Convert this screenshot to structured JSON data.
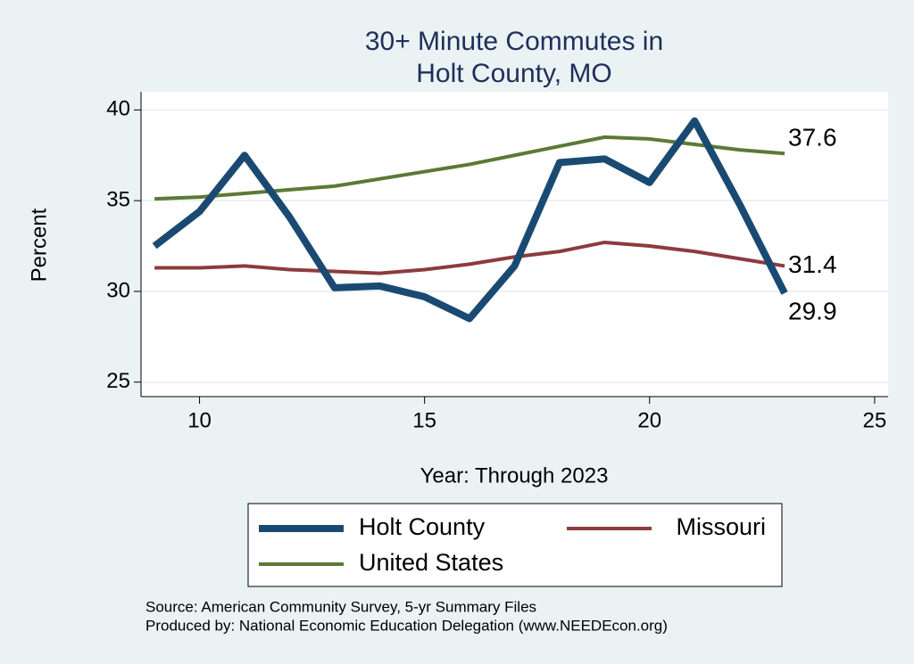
{
  "chart_data": {
    "type": "line",
    "title": [
      "30+ Minute Commutes in",
      "Holt County, MO"
    ],
    "x_label": "Year: Through 2023",
    "y_label": "Percent",
    "x": [
      9,
      10,
      11,
      12,
      13,
      14,
      15,
      16,
      17,
      18,
      19,
      20,
      21,
      22,
      23
    ],
    "series": [
      {
        "name": "Holt County",
        "color": "#1a4a72",
        "values": [
          32.5,
          34.4,
          37.5,
          34.1,
          30.2,
          30.3,
          29.7,
          28.5,
          31.4,
          37.1,
          37.3,
          36.0,
          39.4,
          34.8,
          29.9
        ]
      },
      {
        "name": "Missouri",
        "color": "#8c3b3e",
        "values": [
          31.3,
          31.3,
          31.4,
          31.2,
          31.1,
          31.0,
          31.2,
          31.5,
          31.9,
          32.2,
          32.7,
          32.5,
          32.2,
          31.8,
          31.4
        ]
      },
      {
        "name": "United States",
        "color": "#5a7a35",
        "values": [
          35.1,
          35.2,
          35.4,
          35.6,
          35.8,
          36.2,
          36.6,
          37.0,
          37.5,
          38.0,
          38.5,
          38.4,
          38.1,
          37.8,
          37.6
        ]
      }
    ],
    "xlim": [
      8.7,
      25.3
    ],
    "ylim": [
      24.2,
      41
    ],
    "xticks": [
      10,
      15,
      20,
      25
    ],
    "yticks": [
      25,
      30,
      35,
      40
    ],
    "grid": true,
    "notes": [
      "Source: American Community Survey, 5-yr Summary Files",
      "Produced by: National Economic Education Delegation (www.NEEDEcon.org)"
    ]
  }
}
